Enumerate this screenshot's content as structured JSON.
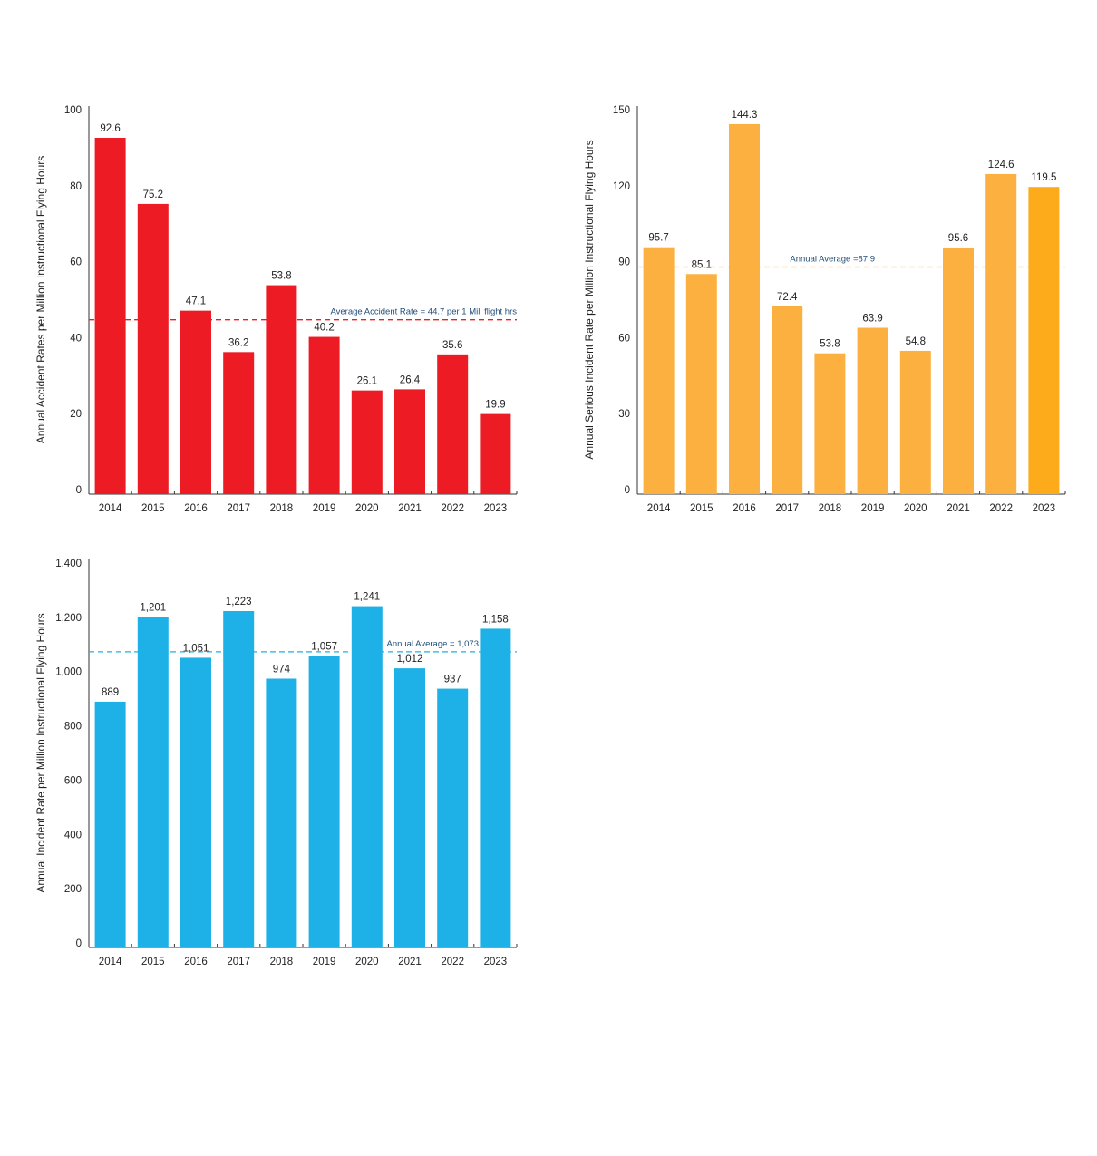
{
  "chart_data": [
    {
      "id": "accident",
      "type": "bar",
      "ylabel": "Annual Accident Rates per Million Instructional Flying Hours",
      "xlabel": "",
      "categories": [
        "2014",
        "2015",
        "2016",
        "2017",
        "2018",
        "2019",
        "2020",
        "2021",
        "2022",
        "2023"
      ],
      "values": [
        92.6,
        75.2,
        47.1,
        36.2,
        53.8,
        40.2,
        26.1,
        26.4,
        35.6,
        19.9
      ],
      "value_labels": [
        "92.6",
        "75.2",
        "47.1",
        "36.2",
        "53.8",
        "40.2",
        "26.1",
        "26.4",
        "35.6",
        "19.9"
      ],
      "ylim": [
        0,
        100
      ],
      "yticks": [
        0,
        20,
        40,
        60,
        80,
        100
      ],
      "ytick_labels": [
        "0",
        "20",
        "40",
        "60",
        "80",
        "100"
      ],
      "bar_color": "#ED1C24",
      "highlight_color": "#ED1C24",
      "average": {
        "value": 44.7,
        "label": "Average Accident Rate = 44.7 per 1 Mill flight hrs",
        "color": "#ED1C24",
        "label_color": "#1F4E79"
      },
      "grid": false,
      "legend": "none"
    },
    {
      "id": "serious",
      "type": "bar",
      "ylabel": "Annual Serious Incident Rate per Million Instructional Flying Hours",
      "xlabel": "",
      "categories": [
        "2014",
        "2015",
        "2016",
        "2017",
        "2018",
        "2019",
        "2020",
        "2021",
        "2022",
        "2023"
      ],
      "values": [
        95.7,
        85.1,
        144.3,
        72.4,
        53.8,
        63.9,
        54.8,
        95.6,
        124.6,
        119.5
      ],
      "value_labels": [
        "95.7",
        "85.1",
        "144.3",
        "72.4",
        "53.8",
        "63.9",
        "54.8",
        "95.6",
        "124.6",
        "119.5"
      ],
      "ylim": [
        0,
        150
      ],
      "yticks": [
        0,
        30,
        60,
        90,
        120,
        150
      ],
      "ytick_labels": [
        "0",
        "30",
        "60",
        "90",
        "120",
        "150"
      ],
      "bar_color": "#FBB040",
      "highlight_color": "#FDAA1B",
      "average": {
        "value": 87.9,
        "label": "Annual Average =87.9",
        "color": "#FBB040",
        "label_color": "#1F4E79"
      },
      "grid": false,
      "legend": "none"
    },
    {
      "id": "incident",
      "type": "bar",
      "ylabel": "Annual Incident Rate per Million Instructional Flying Hours",
      "xlabel": "",
      "categories": [
        "2014",
        "2015",
        "2016",
        "2017",
        "2018",
        "2019",
        "2020",
        "2021",
        "2022",
        "2023"
      ],
      "values": [
        889,
        1201,
        1051,
        1223,
        974,
        1057,
        1241,
        1012,
        937,
        1158
      ],
      "value_labels": [
        "889",
        "1,201",
        "1,051",
        "1,223",
        "974",
        "1,057",
        "1,241",
        "1,012",
        "937",
        "1,158"
      ],
      "ylim": [
        0,
        1400
      ],
      "yticks": [
        0,
        200,
        400,
        600,
        800,
        1000,
        1200,
        1400
      ],
      "ytick_labels": [
        "0",
        "200",
        "400",
        "600",
        "800",
        "1,000",
        "1,200",
        "1,400"
      ],
      "bar_color": "#1EB1E7",
      "highlight_color": "#1EB1E7",
      "average": {
        "value": 1073,
        "label": "Annual Average = 1,073",
        "color": "#1EB1E7",
        "label_color": "#1F4E79"
      },
      "grid": false,
      "legend": "none"
    }
  ]
}
